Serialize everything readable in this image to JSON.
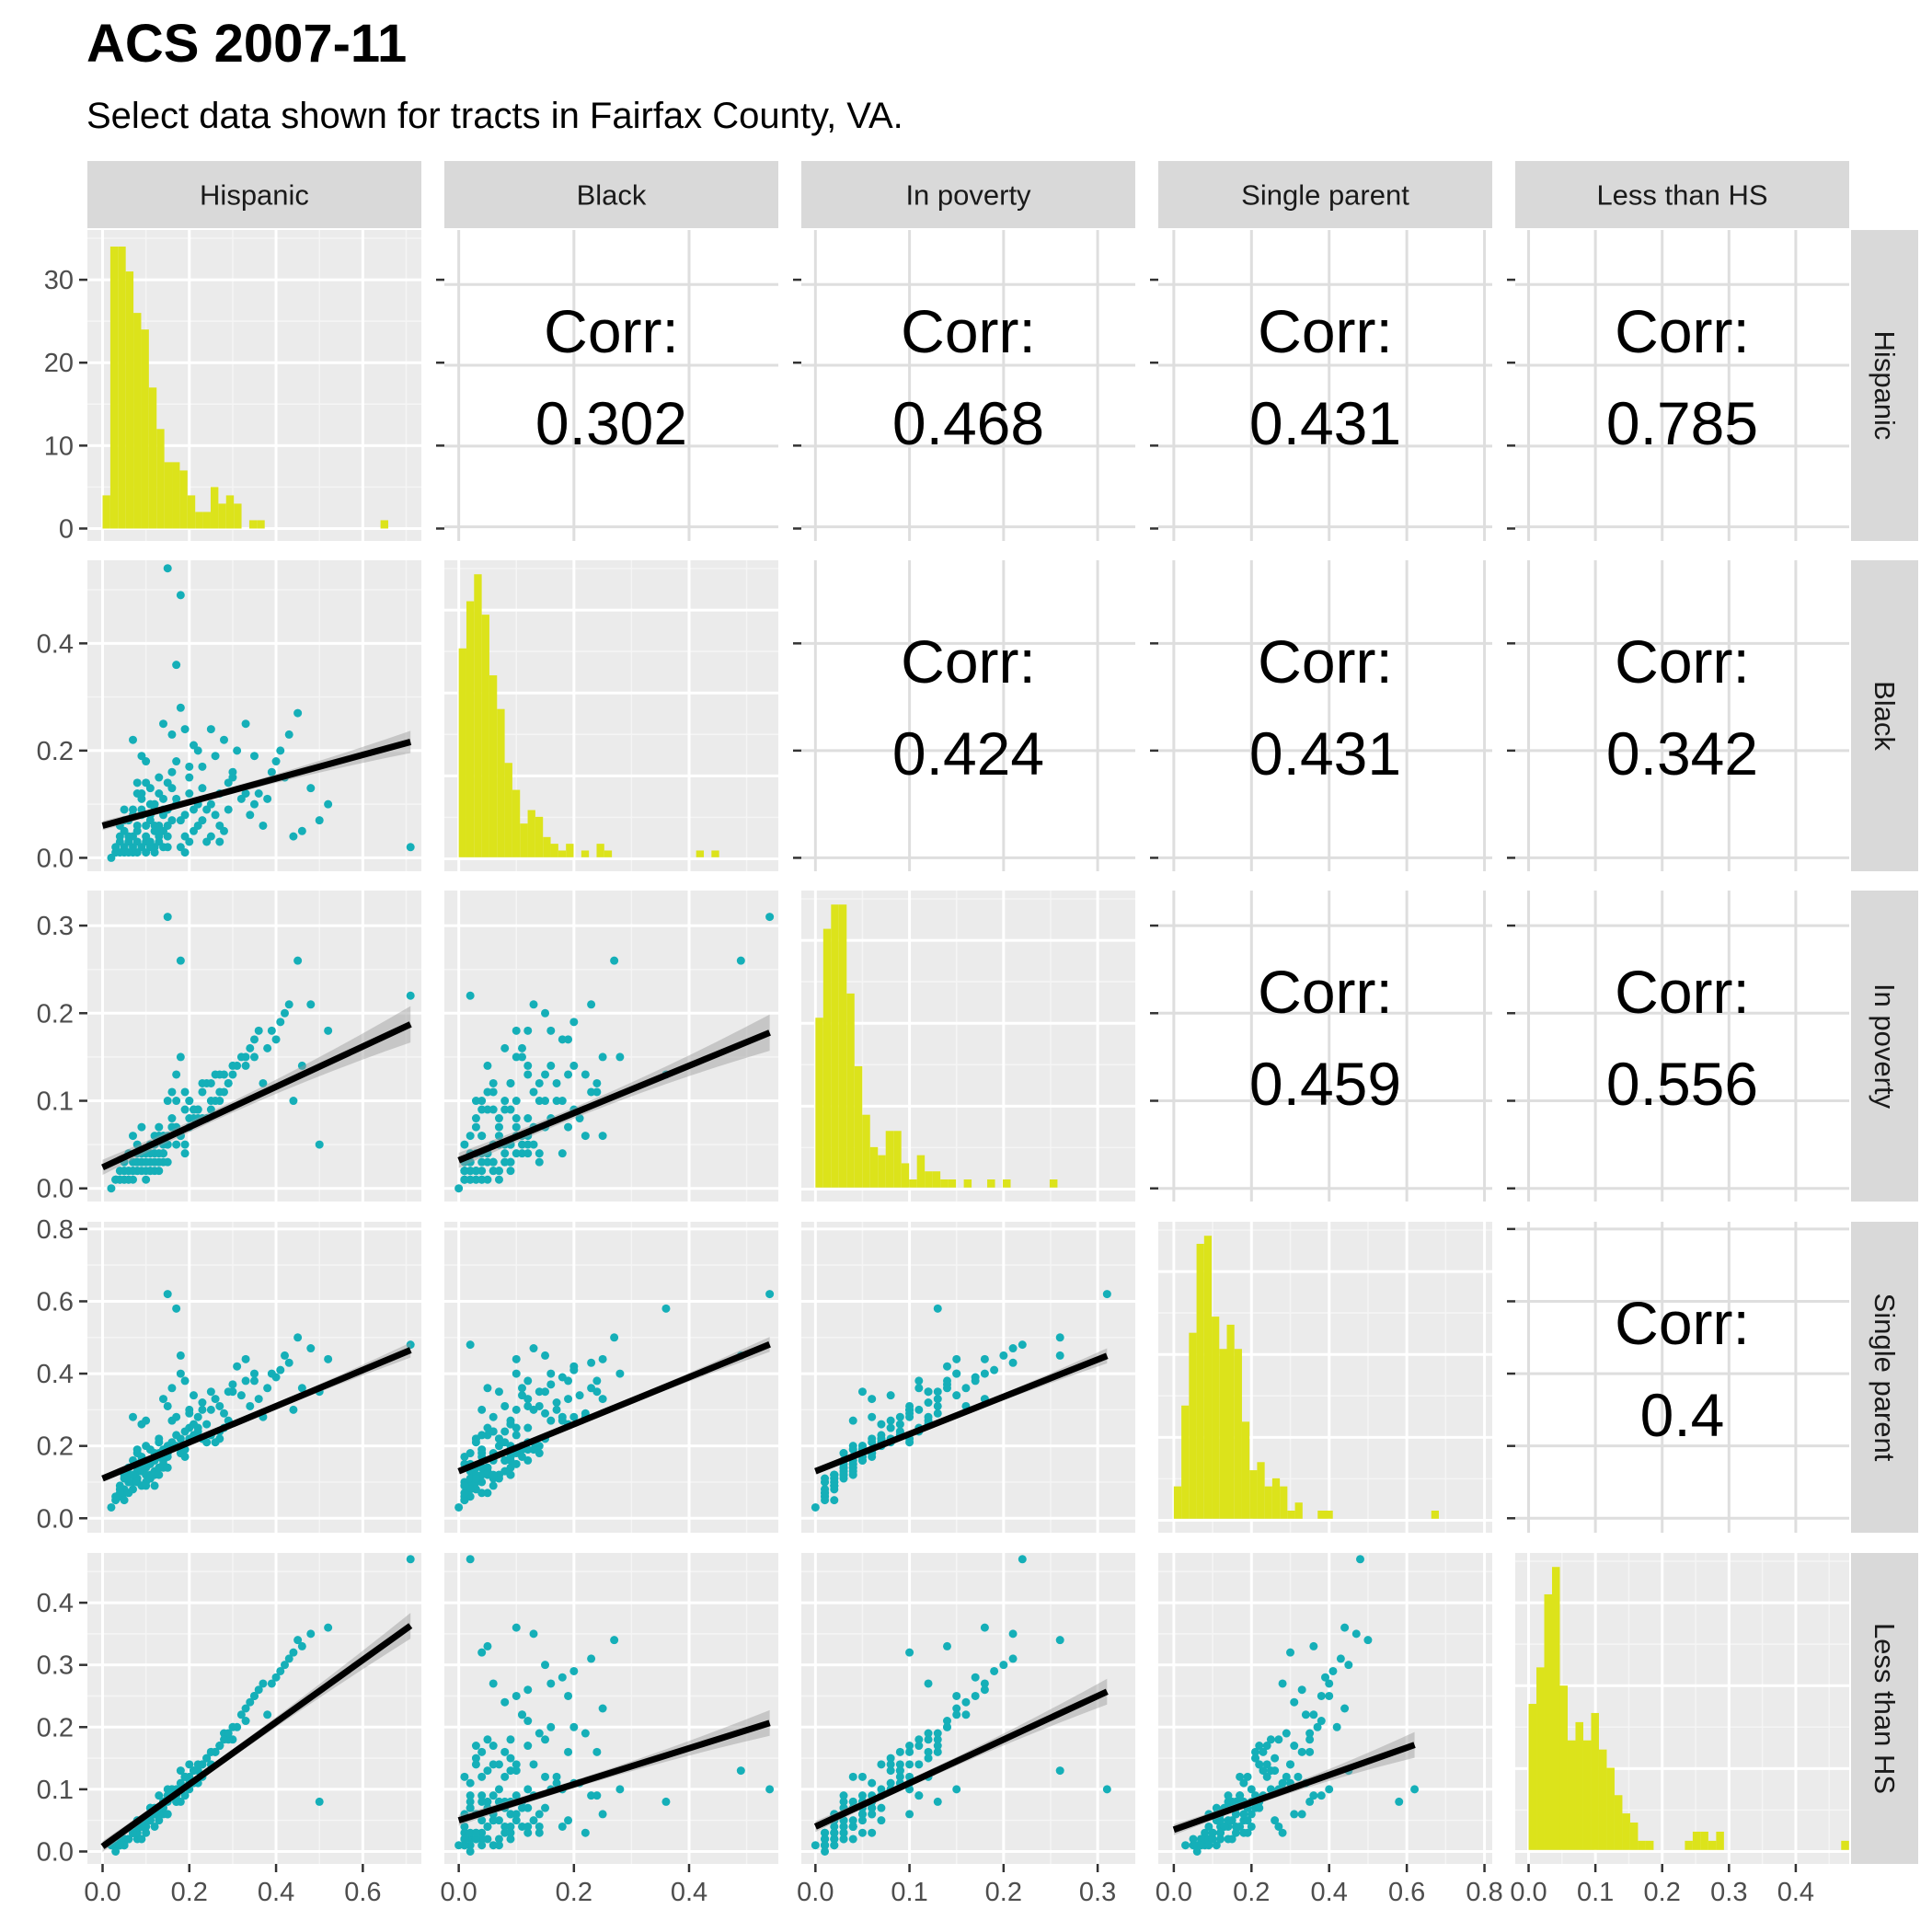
{
  "chart_data": {
    "type": "scatter-matrix",
    "title": "ACS 2007-11",
    "subtitle": "Select data shown for tracts in Fairfax County, VA.",
    "variables": [
      "Hispanic",
      "Black",
      "In poverty",
      "Single parent",
      "Less than HS"
    ],
    "axis_ranges": [
      [
        -0.035,
        0.735
      ],
      [
        -0.025,
        0.555
      ],
      [
        -0.015,
        0.34
      ],
      [
        -0.04,
        0.82
      ],
      [
        -0.02,
        0.48
      ]
    ],
    "ticks": [
      {
        "values": [
          0,
          0.2,
          0.4,
          0.6
        ],
        "labels": [
          "0.0",
          "0.2",
          "0.4",
          "0.6"
        ]
      },
      {
        "values": [
          0,
          0.2,
          0.4
        ],
        "labels": [
          "0.0",
          "0.2",
          "0.4"
        ]
      },
      {
        "values": [
          0,
          0.1,
          0.2,
          0.3
        ],
        "labels": [
          "0.0",
          "0.1",
          "0.2",
          "0.3"
        ]
      },
      {
        "values": [
          0,
          0.2,
          0.4,
          0.6,
          0.8
        ],
        "labels": [
          "0.0",
          "0.2",
          "0.4",
          "0.6",
          "0.8"
        ]
      },
      {
        "values": [
          0,
          0.1,
          0.2,
          0.3,
          0.4
        ],
        "labels": [
          "0.0",
          "0.1",
          "0.2",
          "0.3",
          "0.4"
        ]
      }
    ],
    "count_axis": {
      "range": [
        -1.5,
        36
      ],
      "ticks": [
        0,
        10,
        20,
        30
      ],
      "labels": [
        "0",
        "10",
        "20",
        "30"
      ]
    },
    "correlation_label": "Corr:",
    "correlations": [
      {
        "row": "Black",
        "col": "Hispanic",
        "value": "0.302"
      },
      {
        "row": "In poverty",
        "col": "Hispanic",
        "value": "0.468"
      },
      {
        "row": "Single parent",
        "col": "Hispanic",
        "value": "0.431"
      },
      {
        "row": "Less than HS",
        "col": "Hispanic",
        "value": "0.785"
      },
      {
        "row": "In poverty",
        "col": "Black",
        "value": "0.424"
      },
      {
        "row": "Single parent",
        "col": "Black",
        "value": "0.431"
      },
      {
        "row": "Less than HS",
        "col": "Black",
        "value": "0.342"
      },
      {
        "row": "Single parent",
        "col": "In poverty",
        "value": "0.459"
      },
      {
        "row": "Less than HS",
        "col": "In poverty",
        "value": "0.556"
      },
      {
        "row": "Less than HS",
        "col": "Single parent",
        "value": "0.4"
      }
    ],
    "histograms": [
      {
        "variable": "Hispanic",
        "bin_start": 0.0,
        "bin_width": 0.0178,
        "counts": [
          4,
          34,
          34,
          31,
          26,
          24,
          17,
          12,
          8,
          8,
          7,
          4,
          2,
          2,
          5,
          3,
          4,
          3,
          0,
          1,
          1,
          0,
          0,
          0,
          0,
          0,
          0,
          0,
          0,
          0,
          0,
          0,
          0,
          0,
          0,
          0,
          1
        ]
      },
      {
        "variable": "Black",
        "bin_start": 0.0,
        "bin_width": 0.0133,
        "counts": [
          31,
          38,
          42,
          36,
          27,
          22,
          14,
          10,
          5,
          7,
          6,
          3,
          2,
          1,
          2,
          0,
          1,
          0,
          2,
          1,
          0,
          0,
          0,
          0,
          0,
          0,
          0,
          0,
          0,
          0,
          0,
          1,
          0,
          1
        ]
      },
      {
        "variable": "In poverty",
        "bin_start": 0.0,
        "bin_width": 0.0083,
        "counts": [
          21,
          32,
          35,
          35,
          24,
          15,
          9,
          5,
          4,
          7,
          7,
          3,
          1,
          4,
          2,
          2,
          1,
          1,
          0,
          1,
          0,
          0,
          1,
          0,
          1,
          0,
          0,
          0,
          0,
          0,
          1
        ]
      },
      {
        "variable": "Single parent",
        "bin_start": 0.0,
        "bin_width": 0.0195,
        "counts": [
          4,
          14,
          23,
          34,
          35,
          25,
          21,
          24,
          21,
          12,
          6,
          7,
          4,
          5,
          4,
          1,
          2,
          0,
          0,
          1,
          1,
          0,
          0,
          0,
          0,
          0,
          0,
          0,
          0,
          0,
          0,
          0,
          0,
          0,
          1
        ]
      },
      {
        "variable": "Less than HS",
        "bin_start": 0.0,
        "bin_width": 0.0117,
        "counts": [
          16,
          20,
          28,
          31,
          18,
          12,
          14,
          12,
          15,
          11,
          9,
          6,
          4,
          3,
          1,
          1,
          0,
          0,
          0,
          0,
          1,
          2,
          2,
          1,
          2,
          0,
          0,
          0,
          0,
          0,
          0,
          0,
          0,
          0,
          0,
          0,
          0,
          0,
          0,
          0,
          1
        ]
      }
    ],
    "regressions": [
      {
        "x": "Hispanic",
        "y": "Black",
        "intercept": 0.06,
        "slope": 0.22
      },
      {
        "x": "Hispanic",
        "y": "In poverty",
        "intercept": 0.024,
        "slope": 0.23
      },
      {
        "x": "Hispanic",
        "y": "Single parent",
        "intercept": 0.11,
        "slope": 0.5
      },
      {
        "x": "Hispanic",
        "y": "Less than HS",
        "intercept": 0.008,
        "slope": 0.5
      },
      {
        "x": "Black",
        "y": "In poverty",
        "intercept": 0.032,
        "slope": 0.27
      },
      {
        "x": "Black",
        "y": "Single parent",
        "intercept": 0.13,
        "slope": 0.65
      },
      {
        "x": "Black",
        "y": "Less than HS",
        "intercept": 0.05,
        "slope": 0.29
      },
      {
        "x": "In poverty",
        "y": "Single parent",
        "intercept": 0.13,
        "slope": 1.03
      },
      {
        "x": "In poverty",
        "y": "Less than HS",
        "intercept": 0.04,
        "slope": 0.7
      },
      {
        "x": "Single parent",
        "y": "Less than HS",
        "intercept": 0.035,
        "slope": 0.22
      }
    ],
    "points": [
      [
        0.08,
        0.01,
        0.03,
        0.15,
        0.02
      ],
      [
        0.12,
        0.05,
        0.04,
        0.12,
        0.04
      ],
      [
        0.05,
        0.02,
        0.02,
        0.08,
        0.01
      ],
      [
        0.15,
        0.09,
        0.05,
        0.2,
        0.06
      ],
      [
        0.1,
        0.03,
        0.01,
        0.1,
        0.03
      ],
      [
        0.2,
        0.12,
        0.08,
        0.25,
        0.1
      ],
      [
        0.03,
        0.01,
        0.01,
        0.05,
        0.01
      ],
      [
        0.18,
        0.07,
        0.06,
        0.22,
        0.08
      ],
      [
        0.25,
        0.1,
        0.1,
        0.3,
        0.14
      ],
      [
        0.07,
        0.04,
        0.02,
        0.12,
        0.03
      ],
      [
        0.3,
        0.15,
        0.13,
        0.35,
        0.18
      ],
      [
        0.13,
        0.06,
        0.03,
        0.18,
        0.05
      ],
      [
        0.09,
        0.02,
        0.02,
        0.09,
        0.02
      ],
      [
        0.22,
        0.2,
        0.09,
        0.28,
        0.11
      ],
      [
        0.06,
        0.03,
        0.04,
        0.14,
        0.02
      ],
      [
        0.35,
        0.1,
        0.15,
        0.4,
        0.25
      ],
      [
        0.11,
        0.08,
        0.05,
        0.16,
        0.07
      ],
      [
        0.04,
        0.01,
        0.01,
        0.06,
        0.01
      ],
      [
        0.16,
        0.13,
        0.07,
        0.21,
        0.09
      ],
      [
        0.27,
        0.06,
        0.11,
        0.24,
        0.17
      ],
      [
        0.14,
        0.25,
        0.06,
        0.33,
        0.06
      ],
      [
        0.02,
        0.0,
        0.0,
        0.03,
        0.01
      ],
      [
        0.19,
        0.04,
        0.04,
        0.19,
        0.12
      ],
      [
        0.42,
        0.15,
        0.2,
        0.45,
        0.3
      ],
      [
        0.1,
        0.18,
        0.04,
        0.27,
        0.04
      ],
      [
        0.08,
        0.06,
        0.02,
        0.11,
        0.05
      ],
      [
        0.24,
        0.09,
        0.12,
        0.26,
        0.15
      ],
      [
        0.05,
        0.05,
        0.01,
        0.07,
        0.02
      ],
      [
        0.17,
        0.11,
        0.05,
        0.2,
        0.08
      ],
      [
        0.12,
        0.02,
        0.03,
        0.13,
        0.07
      ],
      [
        0.33,
        0.12,
        0.14,
        0.38,
        0.21
      ],
      [
        0.07,
        0.01,
        0.02,
        0.1,
        0.03
      ],
      [
        0.21,
        0.05,
        0.09,
        0.23,
        0.13
      ],
      [
        0.15,
        0.14,
        0.1,
        0.31,
        0.06
      ],
      [
        0.09,
        0.09,
        0.03,
        0.14,
        0.04
      ],
      [
        0.45,
        0.27,
        0.26,
        0.5,
        0.34
      ],
      [
        0.04,
        0.03,
        0.01,
        0.08,
        0.02
      ],
      [
        0.28,
        0.22,
        0.13,
        0.29,
        0.19
      ],
      [
        0.13,
        0.04,
        0.06,
        0.17,
        0.09
      ],
      [
        0.06,
        0.07,
        0.02,
        0.12,
        0.02
      ],
      [
        0.38,
        0.11,
        0.16,
        0.36,
        0.22
      ],
      [
        0.11,
        0.1,
        0.04,
        0.15,
        0.05
      ],
      [
        0.2,
        0.03,
        0.07,
        0.22,
        0.14
      ],
      [
        0.16,
        0.16,
        0.08,
        0.27,
        0.1
      ],
      [
        0.03,
        0.02,
        0.01,
        0.06,
        0.0
      ],
      [
        0.26,
        0.08,
        0.1,
        0.21,
        0.16
      ],
      [
        0.08,
        0.12,
        0.05,
        0.19,
        0.03
      ],
      [
        0.5,
        0.07,
        0.05,
        0.35,
        0.08
      ],
      [
        0.12,
        0.01,
        0.02,
        0.09,
        0.06
      ],
      [
        0.23,
        0.17,
        0.12,
        0.32,
        0.12
      ],
      [
        0.14,
        0.05,
        0.03,
        0.14,
        0.08
      ],
      [
        0.31,
        0.2,
        0.14,
        0.42,
        0.2
      ],
      [
        0.07,
        0.08,
        0.03,
        0.16,
        0.03
      ],
      [
        0.18,
        0.02,
        0.06,
        0.18,
        0.11
      ],
      [
        0.1,
        0.14,
        0.04,
        0.2,
        0.04
      ],
      [
        0.44,
        0.04,
        0.1,
        0.3,
        0.32
      ],
      [
        0.05,
        0.01,
        0.02,
        0.05,
        0.02
      ],
      [
        0.22,
        0.1,
        0.08,
        0.25,
        0.13
      ],
      [
        0.15,
        0.06,
        0.05,
        0.17,
        0.09
      ],
      [
        0.09,
        0.19,
        0.07,
        0.26,
        0.05
      ],
      [
        0.36,
        0.12,
        0.18,
        0.33,
        0.26
      ],
      [
        0.13,
        0.03,
        0.02,
        0.12,
        0.06
      ],
      [
        0.19,
        0.24,
        0.11,
        0.38,
        0.09
      ],
      [
        0.06,
        0.04,
        0.01,
        0.1,
        0.02
      ],
      [
        0.29,
        0.09,
        0.12,
        0.27,
        0.18
      ],
      [
        0.11,
        0.02,
        0.03,
        0.11,
        0.07
      ],
      [
        0.17,
        0.36,
        0.13,
        0.58,
        0.08
      ],
      [
        0.08,
        0.05,
        0.04,
        0.13,
        0.04
      ],
      [
        0.4,
        0.18,
        0.17,
        0.39,
        0.28
      ],
      [
        0.14,
        0.11,
        0.06,
        0.19,
        0.07
      ],
      [
        0.25,
        0.04,
        0.09,
        0.23,
        0.16
      ],
      [
        0.04,
        0.06,
        0.02,
        0.09,
        0.01
      ],
      [
        0.2,
        0.15,
        0.1,
        0.29,
        0.12
      ],
      [
        0.12,
        0.09,
        0.05,
        0.16,
        0.06
      ],
      [
        0.33,
        0.25,
        0.15,
        0.44,
        0.23
      ],
      [
        0.07,
        0.02,
        0.01,
        0.08,
        0.03
      ],
      [
        0.16,
        0.07,
        0.07,
        0.2,
        0.1
      ],
      [
        0.1,
        0.04,
        0.03,
        0.14,
        0.05
      ],
      [
        0.48,
        0.13,
        0.21,
        0.47,
        0.35
      ],
      [
        0.21,
        0.21,
        0.08,
        0.34,
        0.11
      ],
      [
        0.09,
        0.11,
        0.04,
        0.17,
        0.04
      ],
      [
        0.27,
        0.03,
        0.1,
        0.22,
        0.17
      ],
      [
        0.05,
        0.09,
        0.03,
        0.12,
        0.02
      ],
      [
        0.18,
        0.49,
        0.26,
        0.45,
        0.13
      ],
      [
        0.13,
        0.12,
        0.06,
        0.21,
        0.07
      ],
      [
        0.37,
        0.06,
        0.12,
        0.28,
        0.27
      ],
      [
        0.11,
        0.07,
        0.02,
        0.12,
        0.05
      ],
      [
        0.23,
        0.13,
        0.11,
        0.3,
        0.14
      ],
      [
        0.15,
        0.54,
        0.31,
        0.62,
        0.1
      ],
      [
        0.06,
        0.03,
        0.02,
        0.1,
        0.02
      ],
      [
        0.3,
        0.16,
        0.14,
        0.37,
        0.2
      ],
      [
        0.14,
        0.02,
        0.04,
        0.15,
        0.08
      ],
      [
        0.19,
        0.08,
        0.09,
        0.24,
        0.12
      ],
      [
        0.08,
        0.14,
        0.03,
        0.18,
        0.03
      ],
      [
        0.71,
        0.02,
        0.22,
        0.48,
        0.47
      ],
      [
        0.12,
        0.06,
        0.05,
        0.16,
        0.06
      ],
      [
        0.26,
        0.19,
        0.13,
        0.33,
        0.16
      ],
      [
        0.1,
        0.01,
        0.02,
        0.09,
        0.04
      ],
      [
        0.34,
        0.08,
        0.16,
        0.31,
        0.24
      ],
      [
        0.17,
        0.1,
        0.07,
        0.23,
        0.09
      ],
      [
        0.07,
        0.22,
        0.06,
        0.28,
        0.03
      ],
      [
        0.41,
        0.2,
        0.19,
        0.41,
        0.29
      ],
      [
        0.13,
        0.05,
        0.04,
        0.14,
        0.07
      ],
      [
        0.24,
        0.03,
        0.08,
        0.21,
        0.15
      ],
      [
        0.05,
        0.07,
        0.01,
        0.11,
        0.01
      ],
      [
        0.2,
        0.17,
        0.1,
        0.3,
        0.11
      ],
      [
        0.15,
        0.04,
        0.06,
        0.18,
        0.08
      ],
      [
        0.29,
        0.14,
        0.12,
        0.35,
        0.19
      ],
      [
        0.09,
        0.08,
        0.03,
        0.13,
        0.04
      ],
      [
        0.46,
        0.05,
        0.14,
        0.36,
        0.33
      ],
      [
        0.11,
        0.13,
        0.05,
        0.19,
        0.05
      ],
      [
        0.22,
        0.06,
        0.09,
        0.24,
        0.14
      ],
      [
        0.16,
        0.23,
        0.11,
        0.36,
        0.09
      ],
      [
        0.06,
        0.01,
        0.01,
        0.07,
        0.02
      ],
      [
        0.32,
        0.11,
        0.15,
        0.34,
        0.22
      ],
      [
        0.14,
        0.08,
        0.04,
        0.16,
        0.08
      ],
      [
        0.18,
        0.28,
        0.15,
        0.4,
        0.1
      ],
      [
        0.08,
        0.03,
        0.02,
        0.1,
        0.03
      ],
      [
        0.39,
        0.16,
        0.18,
        0.4,
        0.27
      ],
      [
        0.12,
        0.1,
        0.06,
        0.18,
        0.06
      ],
      [
        0.25,
        0.24,
        0.12,
        0.35,
        0.16
      ],
      [
        0.1,
        0.06,
        0.03,
        0.12,
        0.05
      ],
      [
        0.21,
        0.09,
        0.09,
        0.26,
        0.13
      ],
      [
        0.04,
        0.04,
        0.01,
        0.07,
        0.01
      ],
      [
        0.28,
        0.05,
        0.11,
        0.25,
        0.18
      ],
      [
        0.13,
        0.15,
        0.07,
        0.22,
        0.07
      ],
      [
        0.19,
        0.01,
        0.05,
        0.17,
        0.12
      ],
      [
        0.43,
        0.23,
        0.21,
        0.43,
        0.31
      ],
      [
        0.09,
        0.12,
        0.04,
        0.16,
        0.04
      ],
      [
        0.15,
        0.02,
        0.03,
        0.14,
        0.09
      ],
      [
        0.35,
        0.19,
        0.17,
        0.38,
        0.25
      ],
      [
        0.07,
        0.09,
        0.02,
        0.12,
        0.03
      ],
      [
        0.23,
        0.07,
        0.08,
        0.22,
        0.14
      ],
      [
        0.17,
        0.18,
        0.1,
        0.28,
        0.1
      ],
      [
        0.11,
        0.03,
        0.02,
        0.11,
        0.06
      ],
      [
        0.52,
        0.1,
        0.18,
        0.44,
        0.36
      ],
      [
        0.14,
        0.09,
        0.05,
        0.17,
        0.08
      ],
      [
        0.27,
        0.12,
        0.13,
        0.31,
        0.17
      ]
    ]
  }
}
